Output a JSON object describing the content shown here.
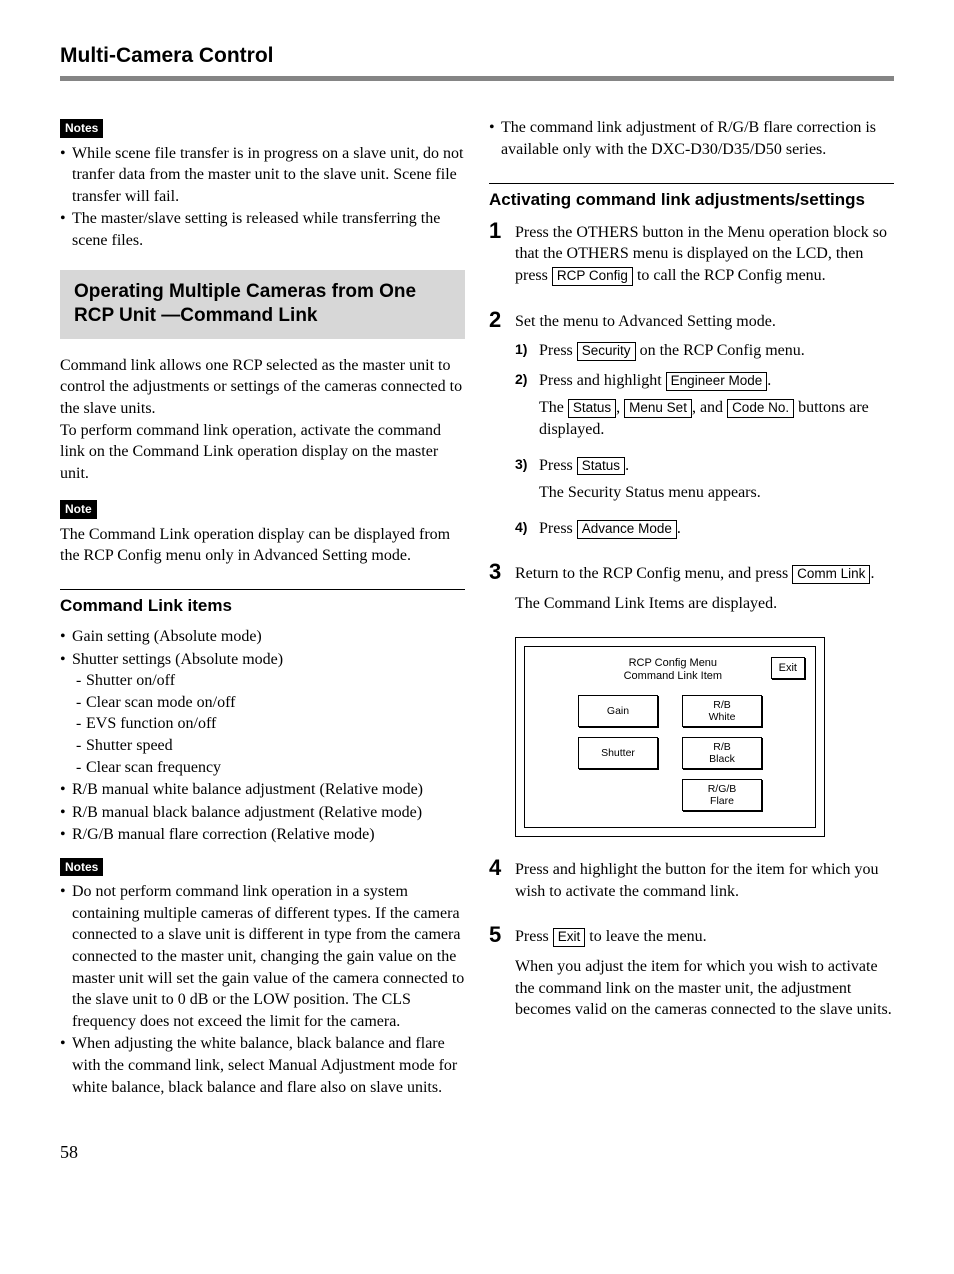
{
  "pageTitle": "Multi-Camera Control",
  "pageNumber": "58",
  "leftCol": {
    "notes1": {
      "label": "Notes",
      "items": [
        "While scene file transfer is in progress on a slave unit, do not tranfer data from the master unit to the slave unit.  Scene file transfer will fail.",
        "The master/slave setting is released while transferring the scene files."
      ]
    },
    "sectionTitle": "Operating Multiple Cameras from One RCP Unit —Command Link",
    "intro1": "Command link allows one RCP selected as the master unit to control the adjustments or settings of the cameras connected to the slave units.",
    "intro2": "To perform command link operation, activate the command link on the Command Link operation display on the master unit.",
    "noteSingle": {
      "label": "Note",
      "text": "The Command Link operation display can be displayed from the RCP Config menu only in Advanced Setting mode."
    },
    "clSection": {
      "title": "Command Link items",
      "items": [
        {
          "text": "Gain setting (Absolute mode)"
        },
        {
          "text": "Shutter settings (Absolute mode)",
          "subs": [
            "Shutter on/off",
            "Clear scan mode on/off",
            "EVS function on/off",
            "Shutter speed",
            "Clear scan frequency"
          ]
        },
        {
          "text": "R/B manual white balance adjustment (Relative mode)"
        },
        {
          "text": "R/B manual black balance adjustment (Relative mode)"
        },
        {
          "text": "R/G/B manual flare correction (Relative mode)"
        }
      ]
    },
    "notes2": {
      "label": "Notes",
      "items": [
        "Do not perform command link operation in a system containing multiple cameras of different types.  If the camera connected to a slave unit is different in type from the camera connected to the master unit, changing the gain value on the master unit will set the gain value of the camera connected to the slave unit to 0 dB or the LOW position.  The CLS frequency does not exceed the limit for the camera.",
        "When adjusting the white balance, black balance and flare with the command link, select Manual Adjustment mode for white balance, black balance and flare also on slave units."
      ]
    }
  },
  "rightCol": {
    "topBullet": "The command link adjustment of R/G/B flare correction is available only with the DXC-D30/D35/D50 series.",
    "actSection": {
      "title": "Activating command link adjustments/settings",
      "step1": {
        "pre": "Press the OTHERS button in the Menu operation block so that the OTHERS menu is displayed on the LCD, then press ",
        "btn": "RCP Config",
        "post": " to call the RCP Config menu."
      },
      "step2": {
        "text": "Set the menu to Advanced Setting mode.",
        "subs": {
          "s1": {
            "pre": "Press ",
            "btn": "Security",
            "post": " on the RCP Config menu."
          },
          "s2": {
            "pre": "Press and highlight ",
            "btn": "Engineer Mode",
            "post": ".",
            "line2pre": "The ",
            "line2b1": "Status",
            "line2m1": ", ",
            "line2b2": "Menu Set",
            "line2m2": ", and ",
            "line2b3": "Code No.",
            "line2post": " buttons are displayed."
          },
          "s3": {
            "pre": "Press ",
            "btn": "Status",
            "post": ".",
            "line2": "The Security Status menu appears."
          },
          "s4": {
            "pre": "Press ",
            "btn": "Advance Mode",
            "post": "."
          }
        }
      },
      "step3": {
        "pre": "Return to  the RCP Config menu, and press ",
        "btn": "Comm Link",
        "post": ".",
        "after": "The Command Link Items are displayed."
      },
      "panel": {
        "titleLine1": "RCP Config Menu",
        "titleLine2": "Command Link Item",
        "exit": "Exit",
        "buttons": {
          "gain": "Gain",
          "rbWhite": "R/B\nWhite",
          "shutter": "Shutter",
          "rbBlack": "R/B\nBlack",
          "rgbFlare": "R/G/B\nFlare"
        }
      },
      "step4": "Press and highlight the button for the item for which you wish to activate the command link.",
      "step5": {
        "pre": "Press ",
        "btn": "Exit",
        "post": " to leave the menu.",
        "after": "When you adjust the item for which you wish to activate the command link on the master unit, the adjustment becomes valid on the cameras connected to the slave units."
      }
    }
  }
}
